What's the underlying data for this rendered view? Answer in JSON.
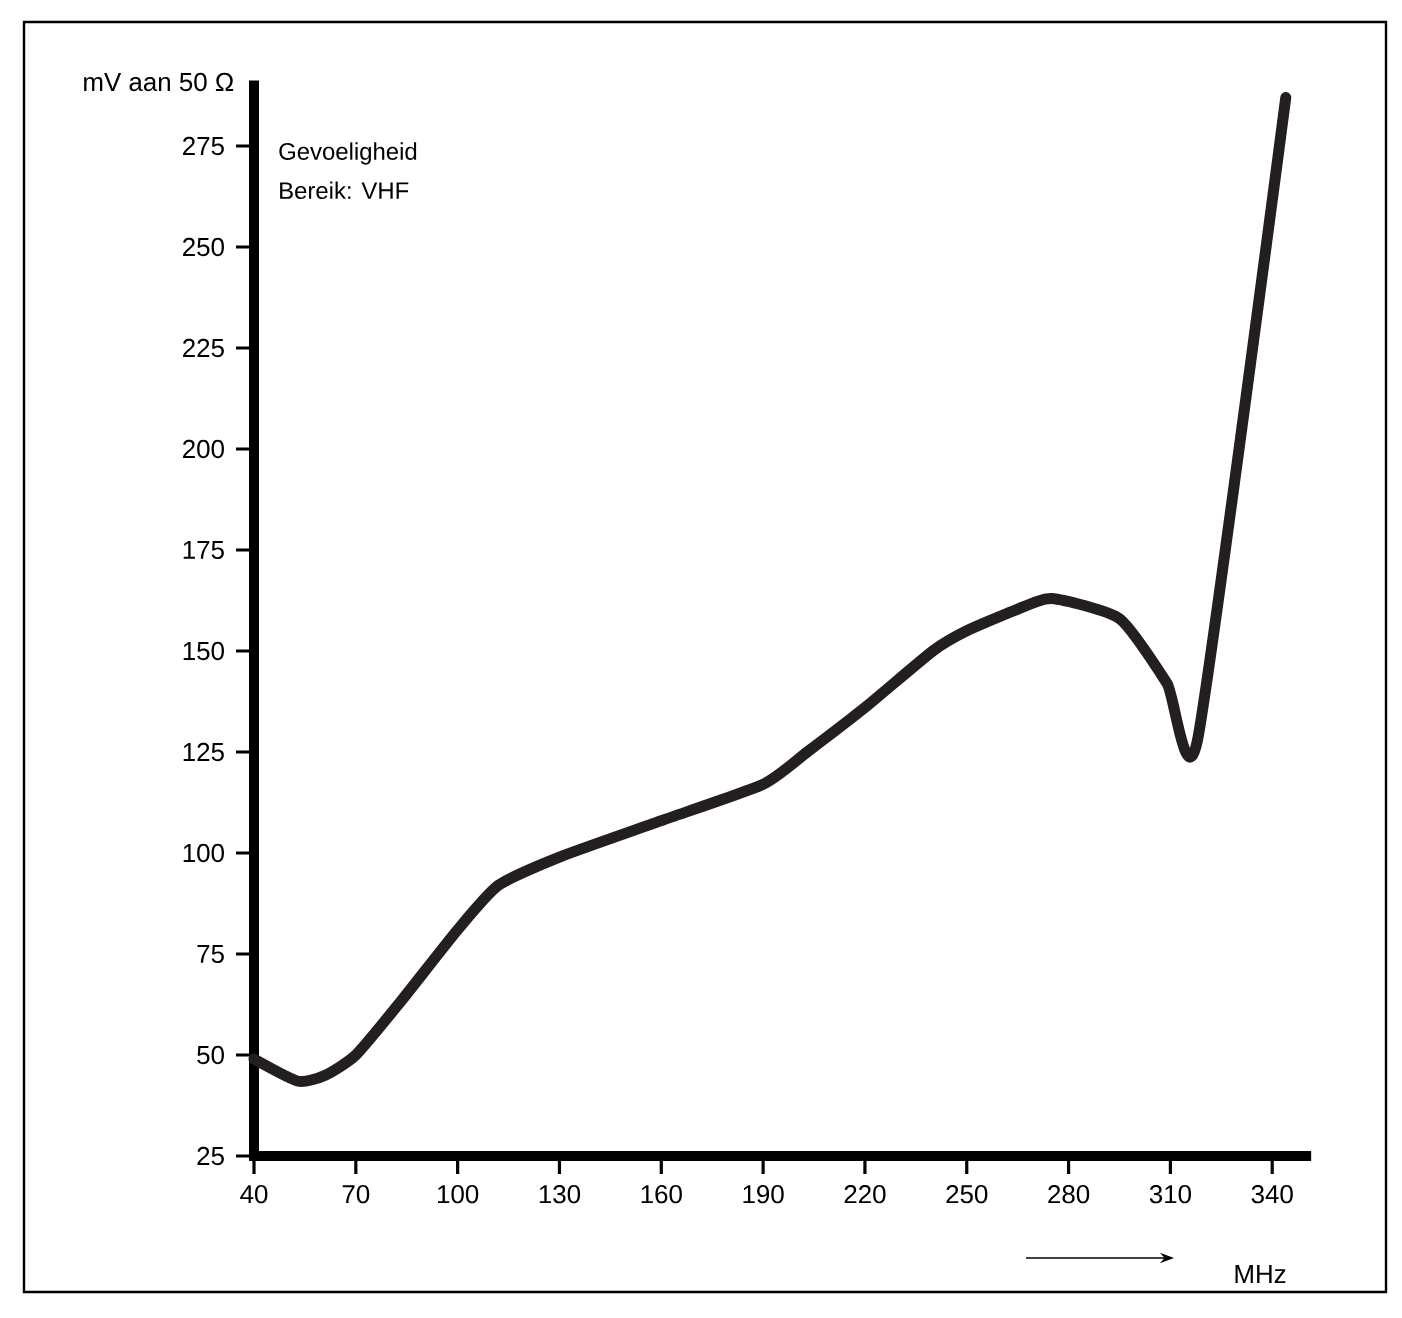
{
  "chart_data": {
    "type": "line",
    "ylabel": "mV aan 50 Ω",
    "xlabel": "MHz",
    "annotations": [
      "Gevoeligheid",
      "Bereik: VHF"
    ],
    "x": [
      40,
      53,
      61,
      70,
      83,
      100,
      112,
      130,
      160,
      190,
      203,
      220,
      240,
      250,
      264,
      275,
      295,
      309,
      318,
      344
    ],
    "series": [
      {
        "color": "#231f20",
        "values": [
          49,
          43.5,
          45,
          50,
          63,
          81,
          92,
          99,
          108,
          117,
          125,
          136,
          150,
          155,
          160,
          163,
          158,
          142,
          128,
          287
        ]
      }
    ],
    "xlim": [
      40,
      350
    ],
    "ylim": [
      25,
      290
    ],
    "xticks": [
      40,
      70,
      100,
      130,
      160,
      190,
      220,
      250,
      280,
      310,
      340
    ],
    "yticks": [
      25,
      50,
      75,
      100,
      125,
      150,
      175,
      200,
      225,
      250,
      275
    ],
    "grid": false,
    "marker": "none",
    "line_style": "solid"
  }
}
